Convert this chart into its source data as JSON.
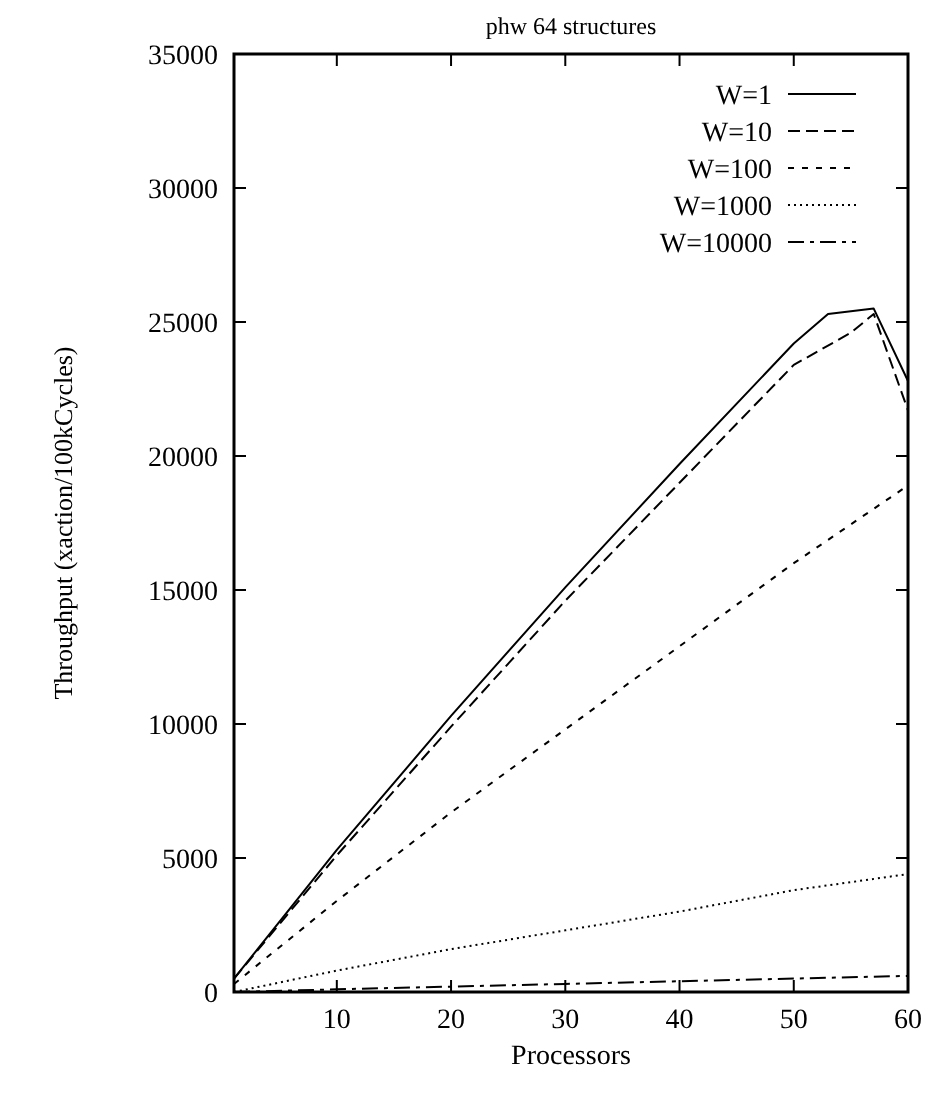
{
  "chart_data": {
    "type": "line",
    "title": "phw 64 structures",
    "xlabel": "Processors",
    "ylabel": "Throughput (xaction/100kCycles)",
    "xlim": [
      1,
      60
    ],
    "ylim": [
      0,
      35000
    ],
    "xticks": [
      10,
      20,
      30,
      40,
      50,
      60
    ],
    "yticks": [
      0,
      5000,
      10000,
      15000,
      20000,
      25000,
      30000,
      35000
    ],
    "legend": "top right",
    "grid": false,
    "series": [
      {
        "name": "W=1",
        "color": "#000000",
        "line_style": "solid",
        "x": [
          1,
          10,
          20,
          30,
          40,
          50,
          53,
          57,
          60
        ],
        "values": [
          500,
          5300,
          10300,
          15100,
          19700,
          24200,
          25300,
          25500,
          22800
        ]
      },
      {
        "name": "W=10",
        "color": "#000000",
        "line_style": "dashed",
        "x": [
          1,
          10,
          20,
          30,
          40,
          50,
          55,
          57,
          60
        ],
        "values": [
          500,
          5100,
          9900,
          14600,
          19000,
          23400,
          24600,
          25300,
          21700
        ]
      },
      {
        "name": "W=100",
        "color": "#000000",
        "line_style": "dashed2",
        "x": [
          1,
          10,
          20,
          30,
          40,
          50,
          60
        ],
        "values": [
          300,
          3400,
          6700,
          9800,
          12900,
          16000,
          18900
        ]
      },
      {
        "name": "W=1000",
        "color": "#000000",
        "line_style": "dotted",
        "x": [
          1,
          10,
          20,
          30,
          40,
          50,
          60
        ],
        "values": [
          0,
          800,
          1600,
          2300,
          3000,
          3800,
          4400
        ]
      },
      {
        "name": "W=10000",
        "color": "#000000",
        "line_style": "dashdot",
        "x": [
          1,
          10,
          20,
          30,
          40,
          50,
          60
        ],
        "values": [
          0,
          100,
          200,
          300,
          400,
          500,
          600
        ]
      }
    ]
  }
}
